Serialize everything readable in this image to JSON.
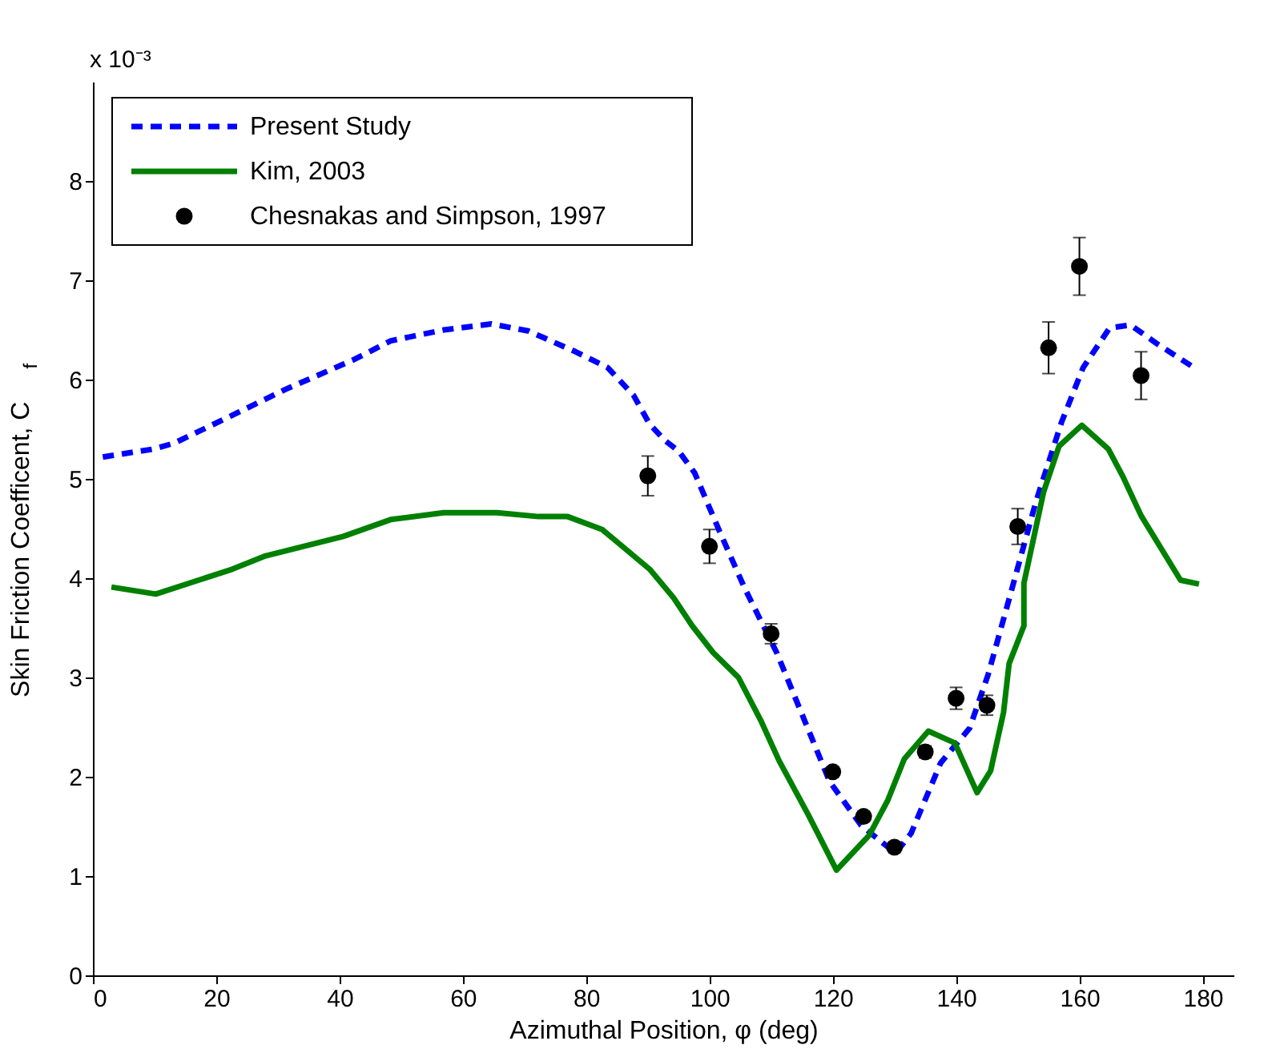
{
  "chart_data": {
    "type": "line",
    "xlabel": "Azimuthal Position, φ (deg)",
    "ylabel": "Skin Friction Coefficent, C$_{f}$",
    "annotations": [
      "x 10⁻³"
    ],
    "xlim": [
      0,
      185
    ],
    "xticks": [
      0,
      20,
      40,
      60,
      80,
      100,
      120,
      140,
      160,
      180
    ],
    "ylim": [
      0,
      9
    ],
    "yticks": [
      0,
      1,
      2,
      3,
      4,
      5,
      6,
      7,
      8
    ],
    "grid": false,
    "legend": "top left",
    "series": [
      {
        "name": "Present Study",
        "type": "line",
        "color": "#0000ff",
        "line_style": "dashed",
        "x": [
          1.6,
          9.8,
          13.2,
          22.6,
          31.2,
          42.3,
          48.3,
          56.9,
          64.6,
          70.6,
          78.3,
          83.5,
          87.7,
          90.3,
          92.9,
          95.0,
          97.6,
          101.5,
          105.7,
          110.9,
          115.2,
          119.5,
          124.6,
          130.2,
          132.7,
          137.5,
          142.2,
          145.2,
          148.6,
          152.9,
          157.1,
          160.6,
          164.9,
          168.3,
          172.6,
          178.1
        ],
        "values": [
          5.22,
          5.3,
          5.36,
          5.64,
          5.9,
          6.2,
          6.39,
          6.5,
          6.56,
          6.49,
          6.28,
          6.12,
          5.84,
          5.55,
          5.38,
          5.28,
          5.06,
          4.49,
          3.9,
          3.25,
          2.6,
          1.95,
          1.51,
          1.23,
          1.43,
          2.14,
          2.49,
          3.03,
          3.79,
          4.76,
          5.57,
          6.12,
          6.52,
          6.55,
          6.36,
          6.14
        ]
      },
      {
        "name": "Kim, 2003",
        "type": "line",
        "color": "#008000",
        "line_style": "solid",
        "x": [
          3.0,
          10.2,
          22.6,
          27.8,
          40.6,
          48.3,
          56.9,
          65.5,
          72.3,
          77.0,
          82.6,
          90.3,
          94.2,
          97.2,
          100.6,
          104.7,
          108.3,
          111.3,
          116.0,
          120.6,
          125.9,
          128.9,
          131.6,
          135.5,
          139.8,
          143.4,
          145.6,
          147.7,
          148.6,
          151.0,
          151.0,
          154.2,
          156.7,
          160.4,
          164.7,
          167.0,
          170.0,
          176.4,
          179.4
        ],
        "values": [
          3.91,
          3.84,
          4.09,
          4.22,
          4.42,
          4.59,
          4.66,
          4.66,
          4.62,
          4.62,
          4.49,
          4.09,
          3.8,
          3.52,
          3.25,
          3.0,
          2.57,
          2.16,
          1.62,
          1.06,
          1.41,
          1.76,
          2.18,
          2.46,
          2.34,
          1.84,
          2.06,
          2.65,
          3.14,
          3.52,
          3.95,
          4.87,
          5.33,
          5.54,
          5.3,
          5.03,
          4.63,
          3.98,
          3.94
        ]
      },
      {
        "name": "Chesnakas and Simpson, 1997",
        "type": "scatter",
        "color": "#000000",
        "marker": "circle",
        "x": [
          90,
          100,
          110,
          120,
          125,
          130,
          135,
          140,
          145,
          150,
          155,
          160,
          170
        ],
        "values": [
          5.03,
          4.32,
          3.44,
          2.05,
          1.6,
          1.29,
          2.25,
          2.79,
          2.72,
          4.52,
          6.32,
          7.14,
          6.04
        ],
        "errors": [
          0.2,
          0.17,
          0.1,
          0.05,
          0.05,
          0.05,
          0.06,
          0.11,
          0.1,
          0.18,
          0.26,
          0.29,
          0.24
        ]
      }
    ]
  }
}
